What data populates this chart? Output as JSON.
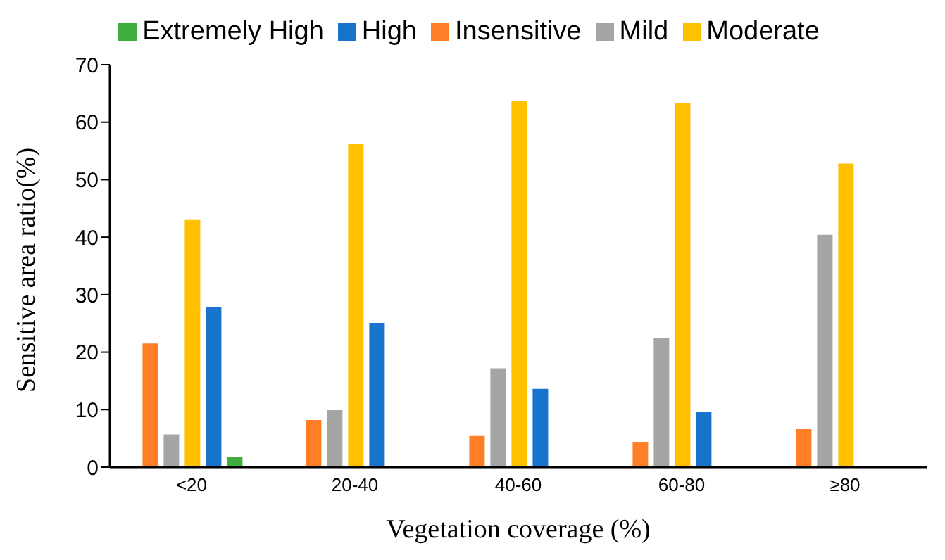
{
  "chart_data": {
    "type": "bar",
    "xlabel": "Vegetation coverage (%)",
    "ylabel": "Sensitive area ratio(%)",
    "categories": [
      "<20",
      "20-40",
      "40-60",
      "60-80",
      "≥80"
    ],
    "series": [
      {
        "name": "Insensitive",
        "color": "#ff7f27",
        "values": [
          21.5,
          8.2,
          5.4,
          4.4,
          6.6
        ]
      },
      {
        "name": "Mild",
        "color": "#a5a5a5",
        "values": [
          5.7,
          9.9,
          17.2,
          22.5,
          40.4
        ]
      },
      {
        "name": "Moderate",
        "color": "#ffc000",
        "values": [
          43,
          56.2,
          63.7,
          63.3,
          52.8
        ]
      },
      {
        "name": "High",
        "color": "#1873cc",
        "values": [
          27.8,
          25.1,
          13.6,
          9.6,
          null
        ]
      },
      {
        "name": "Extremely High",
        "color": "#3fae3f",
        "values": [
          1.8,
          null,
          null,
          null,
          null
        ]
      }
    ],
    "ylim": [
      0,
      70
    ],
    "yticks": [
      0,
      10,
      20,
      30,
      40,
      50,
      60,
      70
    ],
    "grid": false,
    "legend": "top"
  }
}
